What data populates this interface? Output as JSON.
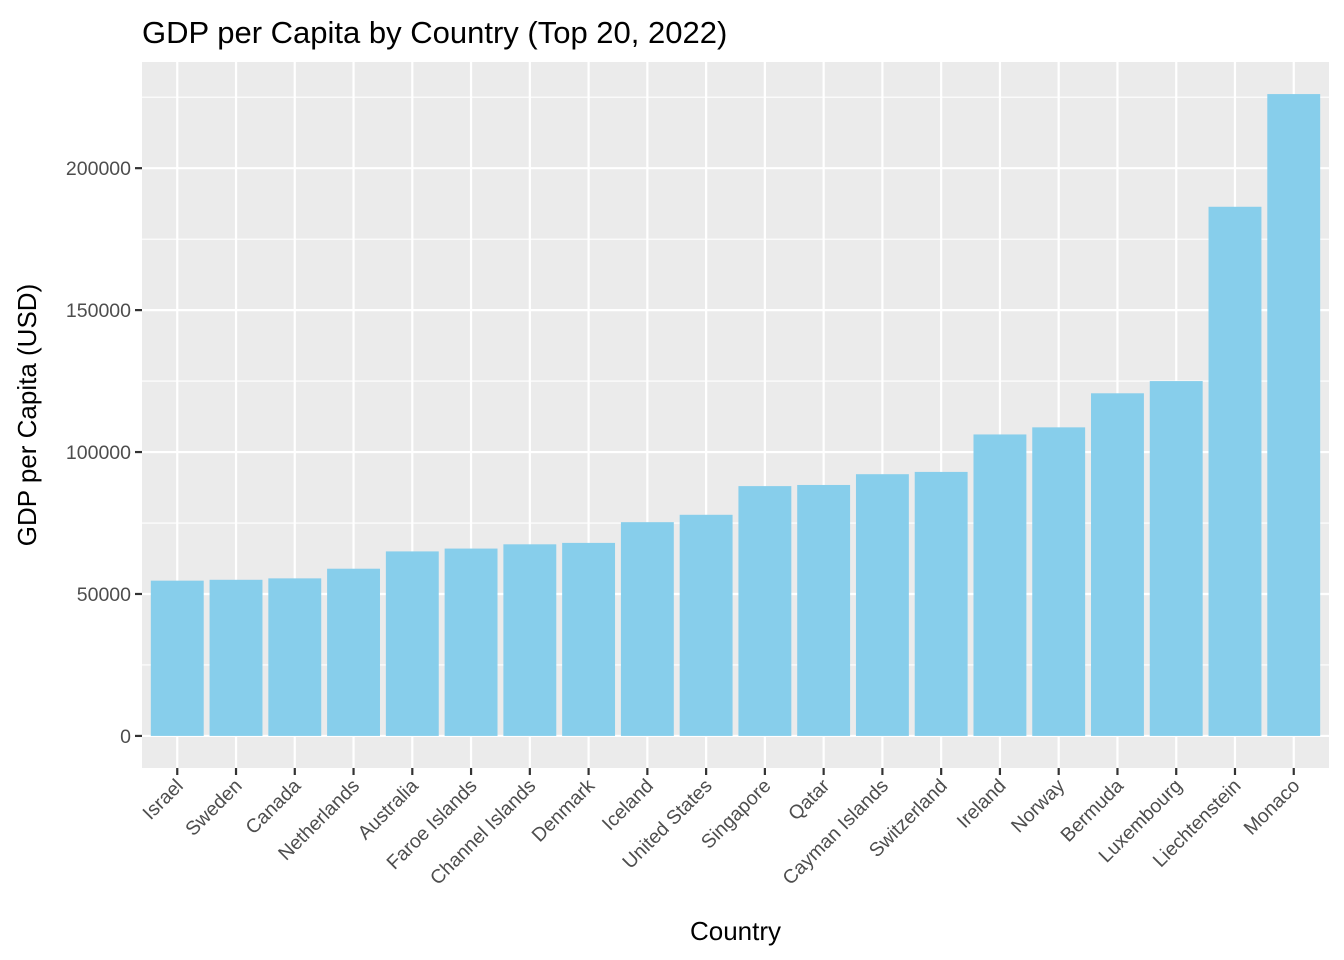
{
  "chart_data": {
    "type": "bar",
    "title": "GDP per Capita by Country (Top 20, 2022)",
    "xlabel": "Country",
    "ylabel": "GDP per Capita (USD)",
    "categories": [
      "Israel",
      "Sweden",
      "Canada",
      "Netherlands",
      "Australia",
      "Faroe Islands",
      "Channel Islands",
      "Denmark",
      "Iceland",
      "United States",
      "Singapore",
      "Qatar",
      "Cayman Islands",
      "Switzerland",
      "Ireland",
      "Norway",
      "Bermuda",
      "Luxembourg",
      "Liechtenstein",
      "Monaco"
    ],
    "values": [
      54700,
      55000,
      55500,
      58900,
      65000,
      66000,
      67500,
      68000,
      75300,
      77900,
      88000,
      88400,
      92200,
      93000,
      106200,
      108700,
      120700,
      125000,
      186400,
      226100
    ],
    "ylim": [
      -11300,
      237400
    ],
    "yticks": [
      0,
      50000,
      100000,
      150000,
      200000
    ],
    "ytick_labels": [
      "0",
      "50000",
      "100000",
      "150000",
      "200000"
    ],
    "grid": true,
    "legend": "none",
    "colors": {
      "bar": "#87CEEB",
      "panel_background": "#EBEBEB",
      "grid_major": "#FFFFFF",
      "tick_text": "#4D4D4D",
      "tick_mark": "#333333"
    }
  }
}
